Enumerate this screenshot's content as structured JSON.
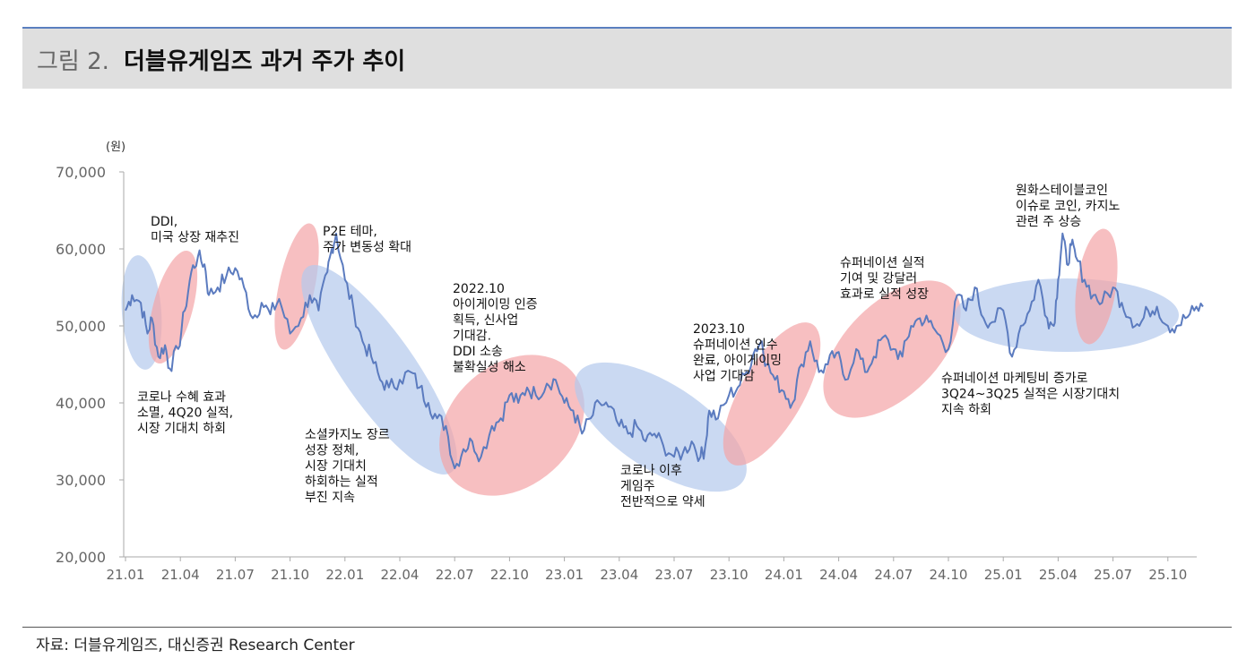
{
  "header": {
    "figure_label": "그림 2.",
    "title": "더블유게임즈 과거 주가 추이"
  },
  "source": "자료: 더블유게임즈, 대신증권 Research Center",
  "colors": {
    "line": "#5b7bbf",
    "ellipse_up": "#f3a4a7",
    "ellipse_down": "#b4c9ec",
    "axis_text": "#666666",
    "header_bg": "#dfdfdf",
    "header_rule": "#5a7fbf"
  },
  "chart_data": {
    "type": "line",
    "title": "더블유게임즈 과거 주가 추이",
    "ylabel": "(원)",
    "ylim": [
      20000,
      70000
    ],
    "yticks": [
      20000,
      30000,
      40000,
      50000,
      60000,
      70000
    ],
    "ytick_labels": [
      "20,000",
      "30,000",
      "40,000",
      "50,000",
      "60,000",
      "70,000"
    ],
    "xlim": [
      "2021-01",
      "2025-12"
    ],
    "xtick_labels": [
      "21.01",
      "21.04",
      "21.07",
      "21.10",
      "22.01",
      "22.04",
      "22.07",
      "22.10",
      "23.01",
      "23.04",
      "23.07",
      "23.10",
      "24.01",
      "24.04",
      "24.07",
      "24.10",
      "25.01",
      "25.04",
      "25.07",
      "25.10"
    ],
    "grid": false,
    "series": [
      {
        "x": [
          2021.0,
          2021.03,
          2021.07,
          2021.11,
          2021.15,
          2021.2,
          2021.22,
          2021.24,
          2021.27,
          2021.3,
          2021.33,
          2021.36,
          2021.38,
          2021.42,
          2021.46,
          2021.5,
          2021.54,
          2021.58,
          2021.62,
          2021.66,
          2021.7,
          2021.75,
          2021.8,
          2021.84,
          2021.88,
          2021.92,
          2021.96,
          2022.0,
          2022.04,
          2022.08,
          2022.12,
          2022.16,
          2022.2,
          2022.25,
          2022.3,
          2022.34,
          2022.38,
          2022.42,
          2022.46,
          2022.5,
          2022.54,
          2022.58,
          2022.62,
          2022.67,
          2022.71,
          2022.75,
          2022.79,
          2022.83,
          2022.87,
          2022.92,
          2022.96,
          2023.0,
          2023.04,
          2023.08,
          2023.12,
          2023.16,
          2023.2,
          2023.25,
          2023.29,
          2023.33,
          2023.37,
          2023.41,
          2023.45,
          2023.5,
          2023.54,
          2023.58,
          2023.62,
          2023.66,
          2023.7,
          2023.75,
          2023.79,
          2023.83,
          2023.87,
          2023.92,
          2023.96,
          2024.0,
          2024.04,
          2024.08,
          2024.12,
          2024.16,
          2024.2,
          2024.24,
          2024.28,
          2024.33,
          2024.37,
          2024.41,
          2024.45,
          2024.5,
          2024.54,
          2024.58,
          2024.62,
          2024.66,
          2024.7,
          2024.75,
          2024.79,
          2024.83,
          2024.87,
          2024.91,
          2024.95,
          2025.0,
          2025.04,
          2025.08,
          2025.12,
          2025.16,
          2025.2,
          2025.25,
          2025.29,
          2025.33,
          2025.37,
          2025.41,
          2025.45,
          2025.5,
          2025.54,
          2025.58,
          2025.62,
          2025.66,
          2025.7,
          2025.75,
          2025.79,
          2025.83,
          2025.87,
          2025.91
        ],
        "values": [
          51000,
          54000,
          53000,
          49000,
          51000,
          46000,
          44500,
          47000,
          52000,
          57000,
          59000,
          58000,
          54000,
          55000,
          56500,
          57500,
          55000,
          51000,
          53000,
          51500,
          53500,
          49000,
          51000,
          54000,
          52000,
          57000,
          62000,
          56000,
          52000,
          48000,
          46000,
          43000,
          42000,
          43000,
          44000,
          42000,
          40000,
          38000,
          37000,
          31500,
          34000,
          35000,
          33000,
          37000,
          38000,
          41000,
          40000,
          42000,
          41000,
          42500,
          43000,
          40000,
          39000,
          36000,
          38000,
          40000,
          39500,
          37000,
          36000,
          37000,
          35000,
          36000,
          34500,
          33000,
          33500,
          35000,
          33000,
          39000,
          38000,
          41000,
          42000,
          44000,
          47000,
          48000,
          43000,
          41500,
          40000,
          45000,
          48000,
          44000,
          45000,
          46500,
          43000,
          47000,
          44000,
          46000,
          48500,
          47000,
          46000,
          50000,
          51000,
          50500,
          49000,
          47000,
          54000,
          52000,
          55000,
          51000,
          50500,
          52000,
          46000,
          50000,
          52000,
          56000,
          51000,
          56000,
          61000,
          60500,
          58000,
          56000,
          54000,
          53000,
          55000,
          53000,
          51000,
          50000,
          52000,
          52500,
          50000,
          50000,
          51000,
          52000
        ],
        "knots": [
          [
            2021.0,
            52000
          ],
          [
            2021.03,
            54000
          ],
          [
            2021.07,
            53000
          ],
          [
            2021.1,
            49000
          ],
          [
            2021.12,
            51000
          ],
          [
            2021.15,
            46000
          ],
          [
            2021.18,
            47500
          ],
          [
            2021.2,
            44500
          ],
          [
            2021.24,
            47000
          ],
          [
            2021.27,
            52000
          ],
          [
            2021.3,
            57000
          ],
          [
            2021.33,
            59000
          ],
          [
            2021.36,
            58000
          ],
          [
            2021.38,
            54000
          ],
          [
            2021.42,
            55000
          ],
          [
            2021.46,
            56500
          ],
          [
            2021.5,
            57500
          ],
          [
            2021.54,
            55000
          ],
          [
            2021.58,
            51000
          ],
          [
            2021.62,
            53000
          ],
          [
            2021.66,
            51500
          ],
          [
            2021.7,
            53500
          ],
          [
            2021.75,
            49000
          ],
          [
            2021.8,
            51000
          ],
          [
            2021.84,
            54000
          ],
          [
            2021.88,
            52000
          ],
          [
            2021.92,
            57000
          ],
          [
            2021.94,
            60000
          ],
          [
            2021.96,
            62000
          ],
          [
            2022.0,
            56000
          ],
          [
            2022.04,
            52000
          ],
          [
            2022.08,
            48000
          ],
          [
            2022.12,
            46000
          ],
          [
            2022.16,
            43000
          ],
          [
            2022.2,
            42000
          ],
          [
            2022.25,
            43000
          ],
          [
            2022.3,
            44000
          ],
          [
            2022.34,
            42000
          ],
          [
            2022.38,
            40000
          ],
          [
            2022.42,
            38000
          ],
          [
            2022.46,
            37000
          ],
          [
            2022.5,
            31500
          ],
          [
            2022.54,
            34000
          ],
          [
            2022.58,
            35000
          ],
          [
            2022.62,
            33000
          ],
          [
            2022.67,
            37000
          ],
          [
            2022.71,
            38000
          ],
          [
            2022.75,
            41000
          ],
          [
            2022.79,
            40000
          ],
          [
            2022.83,
            42000
          ],
          [
            2022.87,
            41000
          ],
          [
            2022.92,
            42500
          ],
          [
            2022.96,
            43000
          ],
          [
            2023.0,
            40000
          ],
          [
            2023.04,
            39000
          ],
          [
            2023.08,
            36000
          ],
          [
            2023.12,
            38000
          ],
          [
            2023.16,
            40000
          ],
          [
            2023.2,
            39500
          ],
          [
            2023.25,
            37000
          ],
          [
            2023.29,
            36000
          ],
          [
            2023.33,
            37000
          ],
          [
            2023.37,
            35000
          ],
          [
            2023.41,
            36000
          ],
          [
            2023.45,
            34500
          ],
          [
            2023.5,
            33000
          ],
          [
            2023.54,
            33500
          ],
          [
            2023.58,
            35000
          ],
          [
            2023.62,
            33000
          ],
          [
            2023.64,
            34000
          ],
          [
            2023.66,
            39000
          ],
          [
            2023.7,
            38000
          ],
          [
            2023.75,
            41000
          ],
          [
            2023.79,
            42000
          ],
          [
            2023.83,
            44000
          ],
          [
            2023.87,
            47000
          ],
          [
            2023.9,
            48000
          ],
          [
            2023.92,
            45000
          ],
          [
            2023.96,
            43000
          ],
          [
            2024.0,
            41500
          ],
          [
            2024.04,
            40000
          ],
          [
            2024.08,
            45000
          ],
          [
            2024.12,
            48000
          ],
          [
            2024.16,
            44000
          ],
          [
            2024.2,
            45000
          ],
          [
            2024.24,
            46500
          ],
          [
            2024.28,
            43000
          ],
          [
            2024.33,
            47000
          ],
          [
            2024.37,
            44000
          ],
          [
            2024.41,
            46000
          ],
          [
            2024.45,
            48500
          ],
          [
            2024.5,
            47000
          ],
          [
            2024.54,
            46000
          ],
          [
            2024.58,
            50000
          ],
          [
            2024.62,
            51000
          ],
          [
            2024.66,
            50500
          ],
          [
            2024.7,
            49000
          ],
          [
            2024.75,
            47000
          ],
          [
            2024.79,
            54000
          ],
          [
            2024.83,
            52000
          ],
          [
            2024.87,
            55000
          ],
          [
            2024.91,
            51000
          ],
          [
            2024.95,
            50500
          ],
          [
            2025.0,
            52000
          ],
          [
            2025.04,
            46000
          ],
          [
            2025.08,
            50000
          ],
          [
            2025.12,
            52000
          ],
          [
            2025.16,
            56000
          ],
          [
            2025.2,
            51000
          ],
          [
            2025.23,
            50000
          ],
          [
            2025.25,
            56000
          ],
          [
            2025.27,
            62000
          ],
          [
            2025.29,
            58000
          ],
          [
            2025.31,
            60500
          ],
          [
            2025.33,
            59000
          ],
          [
            2025.37,
            56000
          ],
          [
            2025.41,
            54000
          ],
          [
            2025.45,
            53000
          ],
          [
            2025.5,
            55000
          ],
          [
            2025.54,
            53000
          ],
          [
            2025.58,
            51000
          ],
          [
            2025.62,
            50000
          ],
          [
            2025.66,
            52000
          ],
          [
            2025.7,
            52500
          ],
          [
            2025.75,
            50000
          ],
          [
            2025.79,
            50000
          ],
          [
            2025.83,
            51000
          ],
          [
            2025.87,
            52000
          ],
          [
            2025.91,
            52500
          ]
        ]
      }
    ],
    "annotations": [
      {
        "text": [
          "DDI,",
          "미국 상장 재추진"
        ]
      },
      {
        "text": [
          "코로나 수혜 효과",
          "소멸, 4Q20 실적,",
          "시장 기대치 하회"
        ]
      },
      {
        "text": [
          "P2E 테마,",
          "주가 변동성 확대"
        ]
      },
      {
        "text": [
          "소셜카지노 장르",
          "성장 정체,",
          "시장 기대치",
          "하회하는 실적",
          "부진 지속"
        ]
      },
      {
        "text": [
          "2022.10",
          "아이게이밍 인증",
          "획득, 신사업",
          "기대감.",
          "DDI 소송",
          "불확실성 해소"
        ]
      },
      {
        "text": [
          "코로나 이후",
          "게임주",
          "전반적으로 약세"
        ]
      },
      {
        "text": [
          "2023.10",
          "슈퍼네이션 인수",
          "완료, 아이게이밍",
          "사업 기대감"
        ]
      },
      {
        "text": [
          "슈퍼네이션 실적",
          "기여 및 강달러",
          "효과로 실적 성장"
        ]
      },
      {
        "text": [
          "슈퍼네이션 마케팅비 증가로",
          "3Q24~3Q25 실적은 시장기대치",
          "지속 하회"
        ]
      },
      {
        "text": [
          "원화스테이블코인",
          "이슈로 코인, 카지노",
          "관련 주 상승"
        ]
      }
    ]
  }
}
